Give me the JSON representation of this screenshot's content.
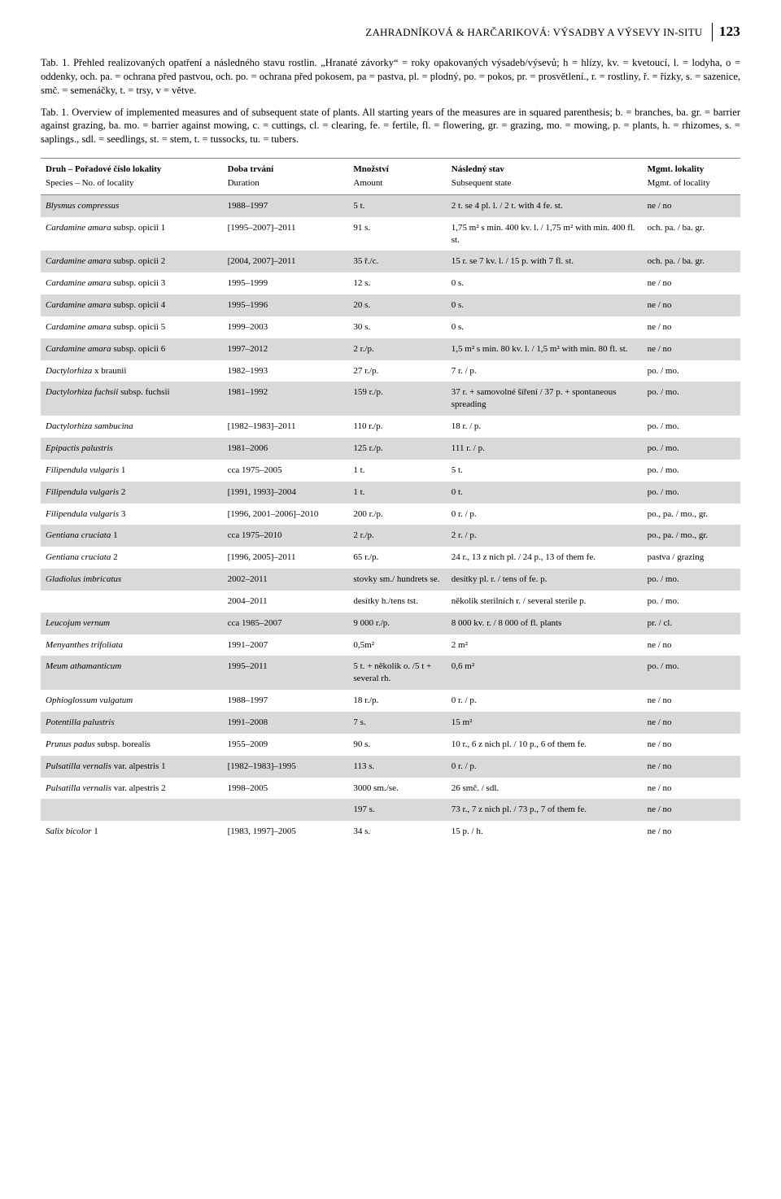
{
  "header": {
    "running_head": "ZAHRADNÍKOVÁ & HARČARIKOVÁ: VÝSADBY A VÝSEVY IN-SITU",
    "page_number": "123"
  },
  "caption_cz": "Tab. 1. Přehled realizovaných opatření a následného stavu rostlin. „Hranaté závorky“ = roky opakovaných výsadeb/výsevů; h = hlízy, kv. = kvetoucí, l. = lodyha, o = oddenky, och. pa. = ochrana před pastvou, och. po. = ochrana před pokosem, pa = pastva, pl. = plodný, po. = pokos, pr. = prosvětlení., r. = rostliny, ř. = řízky, s. = sazenice, smč. = semenáčky, t. = trsy, v = větve.",
  "caption_en": "Tab. 1. Overview of implemented measures and of subsequent state of plants. All starting years of the measures are in squared parenthesis; b. = branches, ba. gr. = barrier against grazing, ba. mo. = barrier against mowing, c. = cuttings, cl. = clearing, fe. = fertile, fl. = flowering, gr. = grazing, mo. = mowing, p. = plants, h. = rhizomes, s. = saplings., sdl. = seedlings, st. = stem, t. = tussocks, tu. = tubers.",
  "columns": {
    "cz": [
      "Druh – Pořadové číslo lokality",
      "Doba trvání",
      "Množství",
      "Následný stav",
      "Mgmt. lokality"
    ],
    "en": [
      "Species – No. of locality",
      "Duration",
      "Amount",
      "Subsequent state",
      "Mgmt. of locality"
    ]
  },
  "rows": [
    {
      "band": true,
      "species_it": "Blysmus compressus",
      "species_suffix": "",
      "duration": "1988–1997",
      "amount": "5 t.",
      "state": "2 t. se 4 pl. l. / 2 t. with 4 fe. st.",
      "mgmt": "ne / no"
    },
    {
      "band": false,
      "species_it": "Cardamine amara",
      "species_suffix": " subsp. opicii 1",
      "duration": "[1995–2007]–2011",
      "amount": "91 s.",
      "state": "1,75 m² s min. 400 kv. l. / 1,75 m² with min. 400 fl. st.",
      "mgmt": "och. pa. / ba. gr."
    },
    {
      "band": true,
      "species_it": "Cardamine amara",
      "species_suffix": " subsp. opicii 2",
      "duration": "[2004, 2007]–2011",
      "amount": "35 ř./c.",
      "state": "15 r. se 7 kv. l. / 15 p. with 7 fl. st.",
      "mgmt": "och. pa. / ba. gr."
    },
    {
      "band": false,
      "species_it": "Cardamine amara",
      "species_suffix": " subsp. opicii 3",
      "duration": "1995–1999",
      "amount": "12 s.",
      "state": "0 s.",
      "mgmt": "ne / no"
    },
    {
      "band": true,
      "species_it": "Cardamine amara",
      "species_suffix": " subsp. opicii 4",
      "duration": "1995–1996",
      "amount": "20 s.",
      "state": "0 s.",
      "mgmt": "ne / no"
    },
    {
      "band": false,
      "species_it": "Cardamine amara",
      "species_suffix": " subsp. opicii 5",
      "duration": "1999–2003",
      "amount": "30 s.",
      "state": "0 s.",
      "mgmt": "ne / no"
    },
    {
      "band": true,
      "species_it": "Cardamine amara",
      "species_suffix": " subsp. opicii 6",
      "duration": "1997–2012",
      "amount": "2 r./p.",
      "state": "1,5 m² s min. 80 kv. l. / 1,5 m² with min. 80 fl. st.",
      "mgmt": "ne / no"
    },
    {
      "band": false,
      "species_it": "Dactylorhiza",
      "species_suffix": " x braunii",
      "duration": "1982–1993",
      "amount": "27 r./p.",
      "state": "7 r. / p.",
      "mgmt": "po. / mo."
    },
    {
      "band": true,
      "species_it": "Dactylorhiza fuchsii",
      "species_suffix": " subsp. fuchsii",
      "duration": "1981–1992",
      "amount": "159 r./p.",
      "state": "37 r. + samovolné šíření / 37 p. + spontaneous spreading",
      "mgmt": "po. / mo."
    },
    {
      "band": false,
      "species_it": "Dactylorhiza sambucina",
      "species_suffix": "",
      "duration": "[1982–1983]–2011",
      "amount": "110 r./p.",
      "state": "18 r. / p.",
      "mgmt": "po. / mo."
    },
    {
      "band": true,
      "species_it": "Epipactis palustris",
      "species_suffix": "",
      "duration": "1981–2006",
      "amount": "125 r./p.",
      "state": "111 r. / p.",
      "mgmt": "po. / mo."
    },
    {
      "band": false,
      "species_it": "Filipendula vulgaris",
      "species_suffix": " 1",
      "duration": "cca 1975–2005",
      "amount": "1 t.",
      "state": "5 t.",
      "mgmt": "po. / mo."
    },
    {
      "band": true,
      "species_it": "Filipendula vulgaris",
      "species_suffix": " 2",
      "duration": "[1991, 1993]–2004",
      "amount": "1 t.",
      "state": "0 t.",
      "mgmt": "po. / mo."
    },
    {
      "band": false,
      "species_it": "Filipendula vulgaris",
      "species_suffix": " 3",
      "duration": "[1996, 2001–2006]–2010",
      "amount": "200 r./p.",
      "state": "0 r. / p.",
      "mgmt": "po., pa. / mo., gr."
    },
    {
      "band": true,
      "species_it": "Gentiana cruciata",
      "species_suffix": " 1",
      "duration": "cca 1975–2010",
      "amount": "2 r./p.",
      "state": "2 r. / p.",
      "mgmt": "po., pa. / mo., gr."
    },
    {
      "band": false,
      "species_it": "Gentiana cruciata",
      "species_suffix": " 2",
      "duration": "[1996, 2005]–2011",
      "amount": "65 r./p.",
      "state": "24 r., 13 z nich pl. / 24 p., 13 of them fe.",
      "mgmt": "pastva / grazing"
    },
    {
      "band": true,
      "species_it": "Gladiolus imbricatus",
      "species_suffix": "",
      "duration": "2002–2011",
      "amount": "stovky sm./ hundrets se.",
      "state": "desítky pl. r. / tens of fe. p.",
      "mgmt": "po. / mo."
    },
    {
      "band": false,
      "species_it": "",
      "species_suffix": "",
      "duration": "2004–2011",
      "amount": "desítky h./tens tst.",
      "state": "několik sterilních r. / several sterile p.",
      "mgmt": "po. / mo."
    },
    {
      "band": true,
      "species_it": "Leucojum vernum",
      "species_suffix": "",
      "duration": "cca 1985–2007",
      "amount": "9 000 r./p.",
      "state": "8 000 kv. r. / 8 000 of fl. plants",
      "mgmt": "pr. / cl."
    },
    {
      "band": false,
      "species_it": "Menyanthes trifoliata",
      "species_suffix": "",
      "duration": "1991–2007",
      "amount": "0,5m²",
      "state": "2 m²",
      "mgmt": "ne / no"
    },
    {
      "band": true,
      "species_it": "Meum athamanticum",
      "species_suffix": "",
      "duration": "1995–2011",
      "amount": "5 t. + několik o. /5 t + several rh.",
      "state": "0,6 m²",
      "mgmt": "po. / mo."
    },
    {
      "band": false,
      "species_it": "Ophioglossum vulgatum",
      "species_suffix": "",
      "duration": "1988–1997",
      "amount": "18 r./p.",
      "state": "0 r. / p.",
      "mgmt": "ne / no"
    },
    {
      "band": true,
      "species_it": "Potentilla palustris",
      "species_suffix": "",
      "duration": "1991–2008",
      "amount": "7 s.",
      "state": "15 m²",
      "mgmt": "ne / no"
    },
    {
      "band": false,
      "species_it": "Prunus padus",
      "species_suffix": " subsp. borealis",
      "duration": "1955–2009",
      "amount": "90 s.",
      "state": "10 r., 6 z nich pl. / 10 p., 6 of them fe.",
      "mgmt": "ne / no"
    },
    {
      "band": true,
      "species_it": "Pulsatilla vernalis",
      "species_suffix": " var. alpestris 1",
      "duration": "[1982–1983]–1995",
      "amount": "113 s.",
      "state": "0 r. / p.",
      "mgmt": "ne / no"
    },
    {
      "band": false,
      "species_it": "Pulsatilla vernalis",
      "species_suffix": " var. alpestris 2",
      "duration": "1998–2005",
      "amount": "3000 sm./se.",
      "state": "26 smč. / sdl.",
      "mgmt": "ne / no"
    },
    {
      "band": true,
      "species_it": "",
      "species_suffix": "",
      "duration": "",
      "amount": "197 s.",
      "state": "73 r., 7 z nich pl. / 73 p., 7 of them fe.",
      "mgmt": "ne / no"
    },
    {
      "band": false,
      "species_it": "Salix bicolor",
      "species_suffix": " 1",
      "duration": "[1983, 1997]–2005",
      "amount": "34 s.",
      "state": "15 p. / h.",
      "mgmt": "ne / no"
    }
  ]
}
